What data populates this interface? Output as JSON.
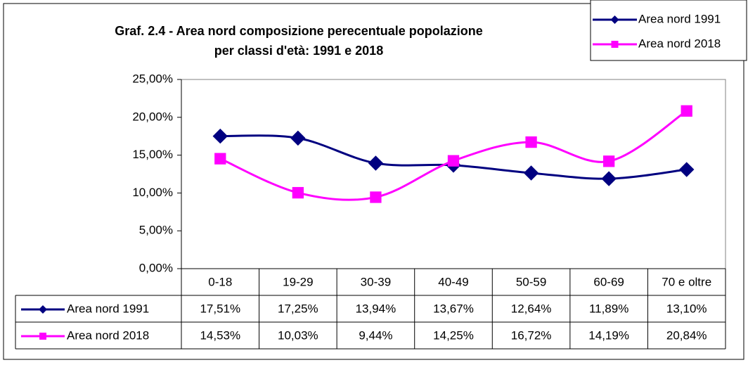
{
  "chart_data": {
    "type": "line",
    "title_lines": [
      "Graf. 2.4 - Area nord composizione perecentuale popolazione",
      "per classi d'età: 1991 e 2018"
    ],
    "categories": [
      "0-18",
      "19-29",
      "30-39",
      "40-49",
      "50-59",
      "60-69",
      "70 e oltre"
    ],
    "series": [
      {
        "name": "Area nord 1991",
        "color": "#000080",
        "marker": "diamond",
        "values": [
          17.51,
          17.25,
          13.94,
          13.67,
          12.64,
          11.89,
          13.1
        ],
        "value_labels": [
          "17,51%",
          "17,25%",
          "13,94%",
          "13,67%",
          "12,64%",
          "11,89%",
          "13,10%"
        ]
      },
      {
        "name": "Area nord 2018",
        "color": "#ff00ff",
        "marker": "square",
        "values": [
          14.53,
          10.03,
          9.44,
          14.25,
          16.72,
          14.19,
          20.84
        ],
        "value_labels": [
          "14,53%",
          "10,03%",
          "9,44%",
          "14,25%",
          "16,72%",
          "14,19%",
          "20,84%"
        ]
      }
    ],
    "ylim": [
      0,
      25
    ],
    "yticks": [
      {
        "value": 0,
        "label": "0,00%"
      },
      {
        "value": 5,
        "label": "5,00%"
      },
      {
        "value": 10,
        "label": "10,00%"
      },
      {
        "value": 15,
        "label": "15,00%"
      },
      {
        "value": 20,
        "label": "20,00%"
      },
      {
        "value": 25,
        "label": "25,00%"
      }
    ],
    "legend": "top-right",
    "smooth": true,
    "data_table": true
  }
}
